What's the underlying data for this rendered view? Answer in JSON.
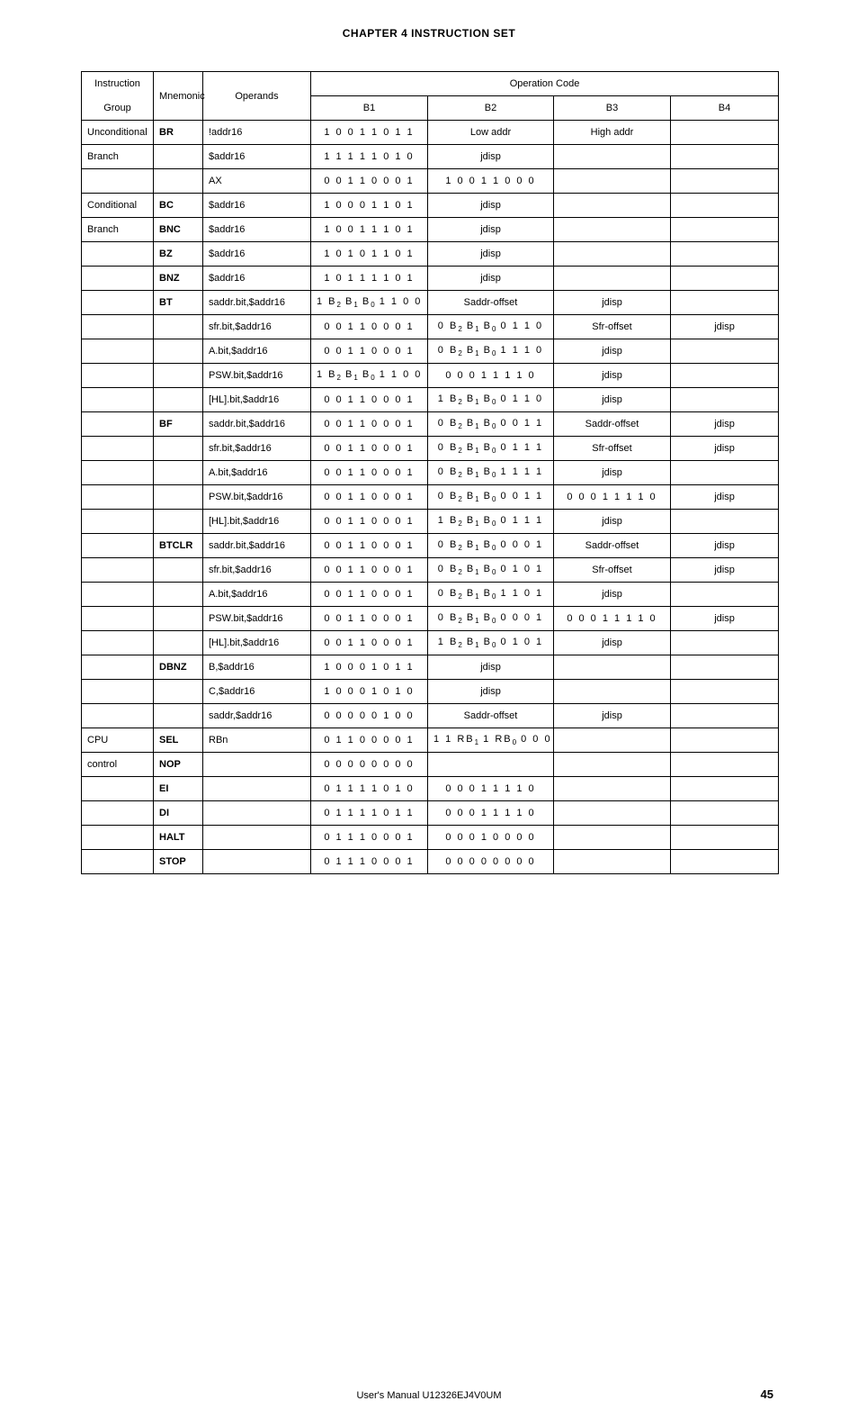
{
  "chapter_title": "CHAPTER 4  INSTRUCTION SET",
  "headers": {
    "group_top": "Instruction",
    "group_bot": "Group",
    "mnemonic": "Mnemonic",
    "operands": "Operands",
    "opcode": "Operation Code",
    "b1": "B1",
    "b2": "B2",
    "b3": "B3",
    "b4": "B4"
  },
  "rows": [
    {
      "group": "Unconditional",
      "mnem": "BR",
      "oper": "!addr16",
      "b1": "1 0 0 1  1 0 1 1",
      "b2": "Low addr",
      "b3": "High addr",
      "b4": ""
    },
    {
      "group": "Branch",
      "mnem": "",
      "oper": "$addr16",
      "b1": "1 1 1 1  1 0 1 0",
      "b2": "jdisp",
      "b3": "",
      "b4": ""
    },
    {
      "group": "",
      "mnem": "",
      "oper": "AX",
      "b1": "0 0 1 1  0 0 0 1",
      "b2": "1 0 0 1  1 0 0 0",
      "b2_bits": true,
      "b3": "",
      "b4": ""
    },
    {
      "group": "Conditional",
      "mnem": "BC",
      "oper": "$addr16",
      "b1": "1 0 0 0  1 1 0 1",
      "b2": "jdisp",
      "b3": "",
      "b4": ""
    },
    {
      "group": "Branch",
      "mnem": "BNC",
      "oper": "$addr16",
      "b1": "1 0 0 1  1 1 0 1",
      "b2": "jdisp",
      "b3": "",
      "b4": ""
    },
    {
      "group": "",
      "mnem": "BZ",
      "oper": "$addr16",
      "b1": "1 0 1 0  1 1 0 1",
      "b2": "jdisp",
      "b3": "",
      "b4": ""
    },
    {
      "group": "",
      "mnem": "BNZ",
      "oper": "$addr16",
      "b1": "1 0 1 1  1 1 0 1",
      "b2": "jdisp",
      "b3": "",
      "b4": ""
    },
    {
      "group": "",
      "mnem": "BT",
      "oper": "saddr.bit,$addr16",
      "b1_html": "1 B<sub class='sub'>2</sub> B<sub class='sub'>1</sub> B<sub class='sub'>0</sub>  1 1 0 0",
      "b2": "Saddr-offset",
      "b3": "jdisp",
      "b4": ""
    },
    {
      "group": "",
      "mnem": "",
      "oper": "sfr.bit,$addr16",
      "b1": "0 0 1 1  0 0 0 1",
      "b2_html": "0 B<sub class='sub'>2</sub> B<sub class='sub'>1</sub> B<sub class='sub'>0</sub>  0 1 1 0",
      "b3": "Sfr-offset",
      "b4": "jdisp"
    },
    {
      "group": "",
      "mnem": "",
      "oper": "A.bit,$addr16",
      "b1": "0 0 1 1  0 0 0 1",
      "b2_html": "0 B<sub class='sub'>2</sub> B<sub class='sub'>1</sub> B<sub class='sub'>0</sub>  1 1 1 0",
      "b3": "jdisp",
      "b4": ""
    },
    {
      "group": "",
      "mnem": "",
      "oper": "PSW.bit,$addr16",
      "b1_html": "1 B<sub class='sub'>2</sub> B<sub class='sub'>1</sub> B<sub class='sub'>0</sub>  1 1 0 0",
      "b2": "0 0 0 1  1 1 1 0",
      "b2_bits": true,
      "b3": "jdisp",
      "b4": ""
    },
    {
      "group": "",
      "mnem": "",
      "oper": "[HL].bit,$addr16",
      "b1": "0 0 1 1  0 0 0 1",
      "b2_html": "1 B<sub class='sub'>2</sub> B<sub class='sub'>1</sub> B<sub class='sub'>0</sub>  0 1 1 0",
      "b3": "jdisp",
      "b4": ""
    },
    {
      "group": "",
      "mnem": "BF",
      "oper": "saddr.bit,$addr16",
      "b1": "0 0 1 1  0 0 0 1",
      "b2_html": "0 B<sub class='sub'>2</sub> B<sub class='sub'>1</sub> B<sub class='sub'>0</sub>  0 0 1 1",
      "b3": "Saddr-offset",
      "b4": "jdisp"
    },
    {
      "group": "",
      "mnem": "",
      "oper": "sfr.bit,$addr16",
      "b1": "0 0 1 1  0 0 0 1",
      "b2_html": "0 B<sub class='sub'>2</sub> B<sub class='sub'>1</sub> B<sub class='sub'>0</sub>  0 1 1 1",
      "b3": "Sfr-offset",
      "b4": "jdisp"
    },
    {
      "group": "",
      "mnem": "",
      "oper": "A.bit,$addr16",
      "b1": "0 0 1 1  0 0 0 1",
      "b2_html": "0 B<sub class='sub'>2</sub> B<sub class='sub'>1</sub> B<sub class='sub'>0</sub>  1 1 1 1",
      "b3": "jdisp",
      "b4": ""
    },
    {
      "group": "",
      "mnem": "",
      "oper": "PSW.bit,$addr16",
      "b1": "0 0 1 1  0 0 0 1",
      "b2_html": "0 B<sub class='sub'>2</sub> B<sub class='sub'>1</sub> B<sub class='sub'>0</sub>  0 0 1 1",
      "b3": "0 0 0 1  1 1 1 0",
      "b3_bits": true,
      "b4": "jdisp"
    },
    {
      "group": "",
      "mnem": "",
      "oper": "[HL].bit,$addr16",
      "b1": "0 0 1 1  0 0 0 1",
      "b2_html": "1 B<sub class='sub'>2</sub> B<sub class='sub'>1</sub> B<sub class='sub'>0</sub>  0 1 1 1",
      "b3": "jdisp",
      "b4": ""
    },
    {
      "group": "",
      "mnem": "BTCLR",
      "oper": "saddr.bit,$addr16",
      "b1": "0 0 1 1  0 0 0 1",
      "b2_html": "0 B<sub class='sub'>2</sub> B<sub class='sub'>1</sub> B<sub class='sub'>0</sub>  0 0 0 1",
      "b3": "Saddr-offset",
      "b4": "jdisp"
    },
    {
      "group": "",
      "mnem": "",
      "oper": "sfr.bit,$addr16",
      "b1": "0 0 1 1  0 0 0 1",
      "b2_html": "0 B<sub class='sub'>2</sub> B<sub class='sub'>1</sub> B<sub class='sub'>0</sub>  0 1 0 1",
      "b3": "Sfr-offset",
      "b4": "jdisp"
    },
    {
      "group": "",
      "mnem": "",
      "oper": "A.bit,$addr16",
      "b1": "0 0 1 1  0 0 0 1",
      "b2_html": "0 B<sub class='sub'>2</sub> B<sub class='sub'>1</sub> B<sub class='sub'>0</sub>  1 1 0 1",
      "b3": "jdisp",
      "b4": ""
    },
    {
      "group": "",
      "mnem": "",
      "oper": "PSW.bit,$addr16",
      "b1": "0 0 1 1  0 0 0 1",
      "b2_html": "0 B<sub class='sub'>2</sub> B<sub class='sub'>1</sub> B<sub class='sub'>0</sub>  0 0 0 1",
      "b3": "0 0 0 1  1 1 1 0",
      "b3_bits": true,
      "b4": "jdisp"
    },
    {
      "group": "",
      "mnem": "",
      "oper": "[HL].bit,$addr16",
      "b1": "0 0 1 1  0 0 0 1",
      "b2_html": "1 B<sub class='sub'>2</sub> B<sub class='sub'>1</sub> B<sub class='sub'>0</sub>  0 1 0 1",
      "b3": "jdisp",
      "b4": ""
    },
    {
      "group": "",
      "mnem": "DBNZ",
      "oper": "B,$addr16",
      "b1": "1 0 0 0  1 0 1 1",
      "b2": "jdisp",
      "b3": "",
      "b4": ""
    },
    {
      "group": "",
      "mnem": "",
      "oper": "C,$addr16",
      "b1": "1 0 0 0  1 0 1 0",
      "b2": "jdisp",
      "b3": "",
      "b4": ""
    },
    {
      "group": "",
      "mnem": "",
      "oper": "saddr,$addr16",
      "b1": "0 0 0 0  0 1 0 0",
      "b2": "Saddr-offset",
      "b3": "jdisp",
      "b4": ""
    },
    {
      "group": "CPU",
      "mnem": "SEL",
      "oper": "RBn",
      "b1": "0 1 1 0  0 0 0 1",
      "b2_html": "1  1 RB<sub class='sub'>1</sub> 1  RB<sub class='sub'>0</sub> 0 0 0",
      "b3": "",
      "b4": ""
    },
    {
      "group": "control",
      "mnem": "NOP",
      "oper": "",
      "b1": "0 0 0 0  0 0 0 0",
      "b2": "",
      "b3": "",
      "b4": ""
    },
    {
      "group": "",
      "mnem": "EI",
      "oper": "",
      "b1": "0 1 1 1  1 0 1 0",
      "b2": "0 0 0 1  1 1 1 0",
      "b2_bits": true,
      "b3": "",
      "b4": ""
    },
    {
      "group": "",
      "mnem": "DI",
      "oper": "",
      "b1": "0 1 1 1  1 0 1 1",
      "b2": "0 0 0 1  1 1 1 0",
      "b2_bits": true,
      "b3": "",
      "b4": ""
    },
    {
      "group": "",
      "mnem": "HALT",
      "oper": "",
      "b1": "0 1 1 1  0 0 0 1",
      "b2": "0 0 0 1  0 0 0 0",
      "b2_bits": true,
      "b3": "",
      "b4": ""
    },
    {
      "group": "",
      "mnem": "STOP",
      "oper": "",
      "b1": "0 1 1 1  0 0 0 1",
      "b2": "0 0 0 0  0 0 0 0",
      "b2_bits": true,
      "b3": "",
      "b4": ""
    }
  ],
  "footer": {
    "manual": "User's Manual  U12326EJ4V0UM",
    "page": "45"
  }
}
